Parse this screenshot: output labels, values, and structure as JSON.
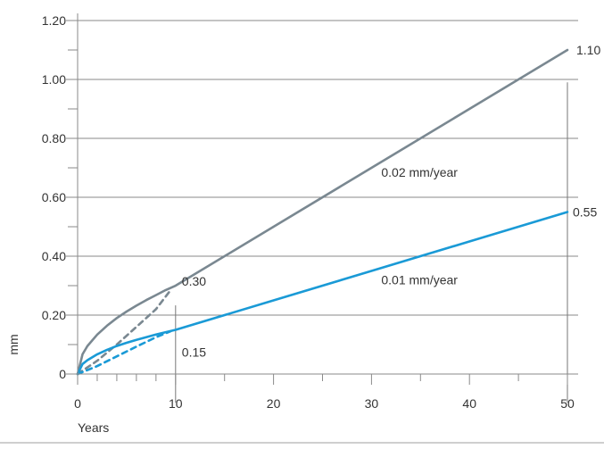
{
  "chart_data": {
    "type": "line",
    "title": "",
    "xlabel": "Years",
    "ylabel": "mm",
    "xlim": [
      0,
      50
    ],
    "ylim": [
      0,
      1.2
    ],
    "x_ticks": [
      0,
      10,
      20,
      30,
      40,
      50
    ],
    "x_tick_labels": [
      "0",
      "10",
      "20",
      "30",
      "40",
      "50"
    ],
    "x_minor_ticks": [
      2,
      4,
      6,
      8
    ],
    "y_ticks": [
      0,
      0.2,
      0.4,
      0.6,
      0.8,
      1.0,
      1.2
    ],
    "y_tick_labels": [
      "0",
      "0.20",
      "0.40",
      "0.60",
      "0.80",
      "1.00",
      "1.20"
    ],
    "grid": "horizontal",
    "series": [
      {
        "name": "0.02 mm/year",
        "color": "#7a8891",
        "style": "solid",
        "x": [
          0,
          0.5,
          1,
          2,
          3,
          4,
          5,
          6,
          7,
          8,
          9,
          10,
          20,
          30,
          40,
          50
        ],
        "y": [
          0,
          0.067,
          0.095,
          0.134,
          0.164,
          0.19,
          0.212,
          0.232,
          0.251,
          0.268,
          0.285,
          0.3,
          0.5,
          0.7,
          0.9,
          1.1
        ]
      },
      {
        "name": "",
        "color": "#7a8891",
        "style": "dashed",
        "x": [
          0,
          2,
          4,
          6,
          8,
          9.5
        ],
        "y": [
          0,
          0.045,
          0.1,
          0.16,
          0.22,
          0.285
        ]
      },
      {
        "name": "0.01 mm/year",
        "color": "#1a9ad6",
        "style": "solid",
        "x": [
          0,
          0.5,
          1,
          2,
          3,
          4,
          5,
          6,
          7,
          8,
          9,
          10,
          20,
          30,
          40,
          50
        ],
        "y": [
          0,
          0.034,
          0.047,
          0.067,
          0.082,
          0.095,
          0.106,
          0.116,
          0.125,
          0.134,
          0.142,
          0.15,
          0.25,
          0.35,
          0.45,
          0.55
        ]
      },
      {
        "name": "",
        "color": "#1a9ad6",
        "style": "dashed",
        "x": [
          0,
          2,
          4,
          6,
          8,
          9.5
        ],
        "y": [
          0,
          0.027,
          0.06,
          0.093,
          0.125,
          0.145
        ]
      }
    ],
    "annotations": [
      {
        "text": "1.10"
      },
      {
        "text": "0.55"
      },
      {
        "text": "0.30"
      },
      {
        "text": "0.15"
      },
      {
        "text": "0.02 mm/year"
      },
      {
        "text": "0.01 mm/year"
      }
    ],
    "reference_lines": [
      {
        "x": 10
      },
      {
        "x": 50
      }
    ]
  }
}
